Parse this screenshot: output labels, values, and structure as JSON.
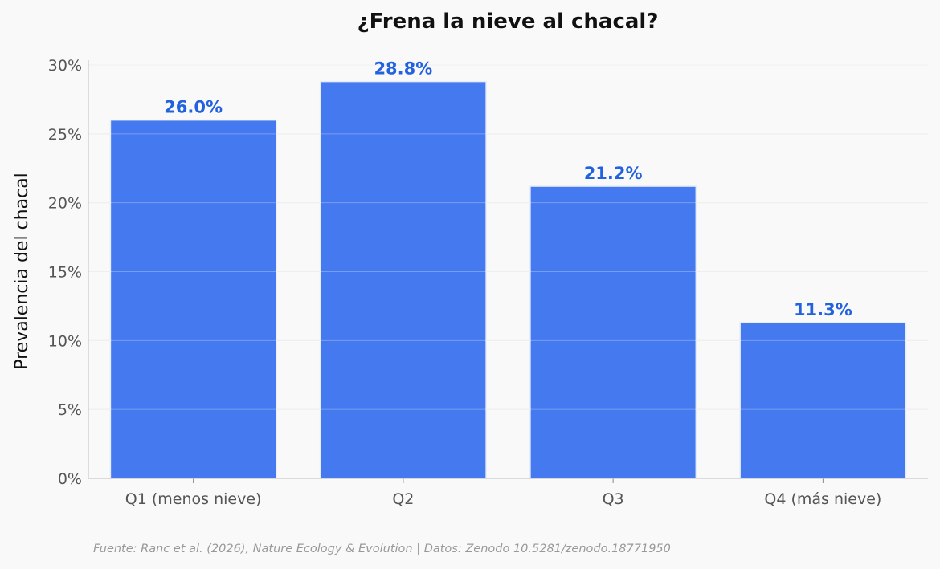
{
  "chart_data": {
    "type": "bar",
    "title": "¿Frena la nieve al chacal?",
    "xlabel": "",
    "ylabel": "Prevalencia del chacal",
    "categories": [
      "Q1 (menos nieve)",
      "Q2",
      "Q3",
      "Q4 (más nieve)"
    ],
    "values": [
      26.0,
      28.8,
      21.2,
      11.3
    ],
    "data_labels": [
      "26.0%",
      "28.8%",
      "21.2%",
      "11.3%"
    ],
    "ylim": [
      0,
      30
    ],
    "yticks": [
      0,
      5,
      10,
      15,
      20,
      25,
      30
    ],
    "ytick_labels": [
      "0%",
      "5%",
      "10%",
      "15%",
      "20%",
      "25%",
      "30%"
    ],
    "grid": true,
    "legend": "none",
    "colors": {
      "bar": "#4579ef",
      "bar_edge": "#e6ecf8",
      "data_label": "#2262de",
      "grid": "#e8e8e8",
      "axis": "#c8c8c8",
      "background": "#f9f9f9"
    }
  },
  "source_note": "Fuente: Ranc et al. (2026), Nature Ecology & Evolution | Datos: Zenodo 10.5281/zenodo.18771950"
}
